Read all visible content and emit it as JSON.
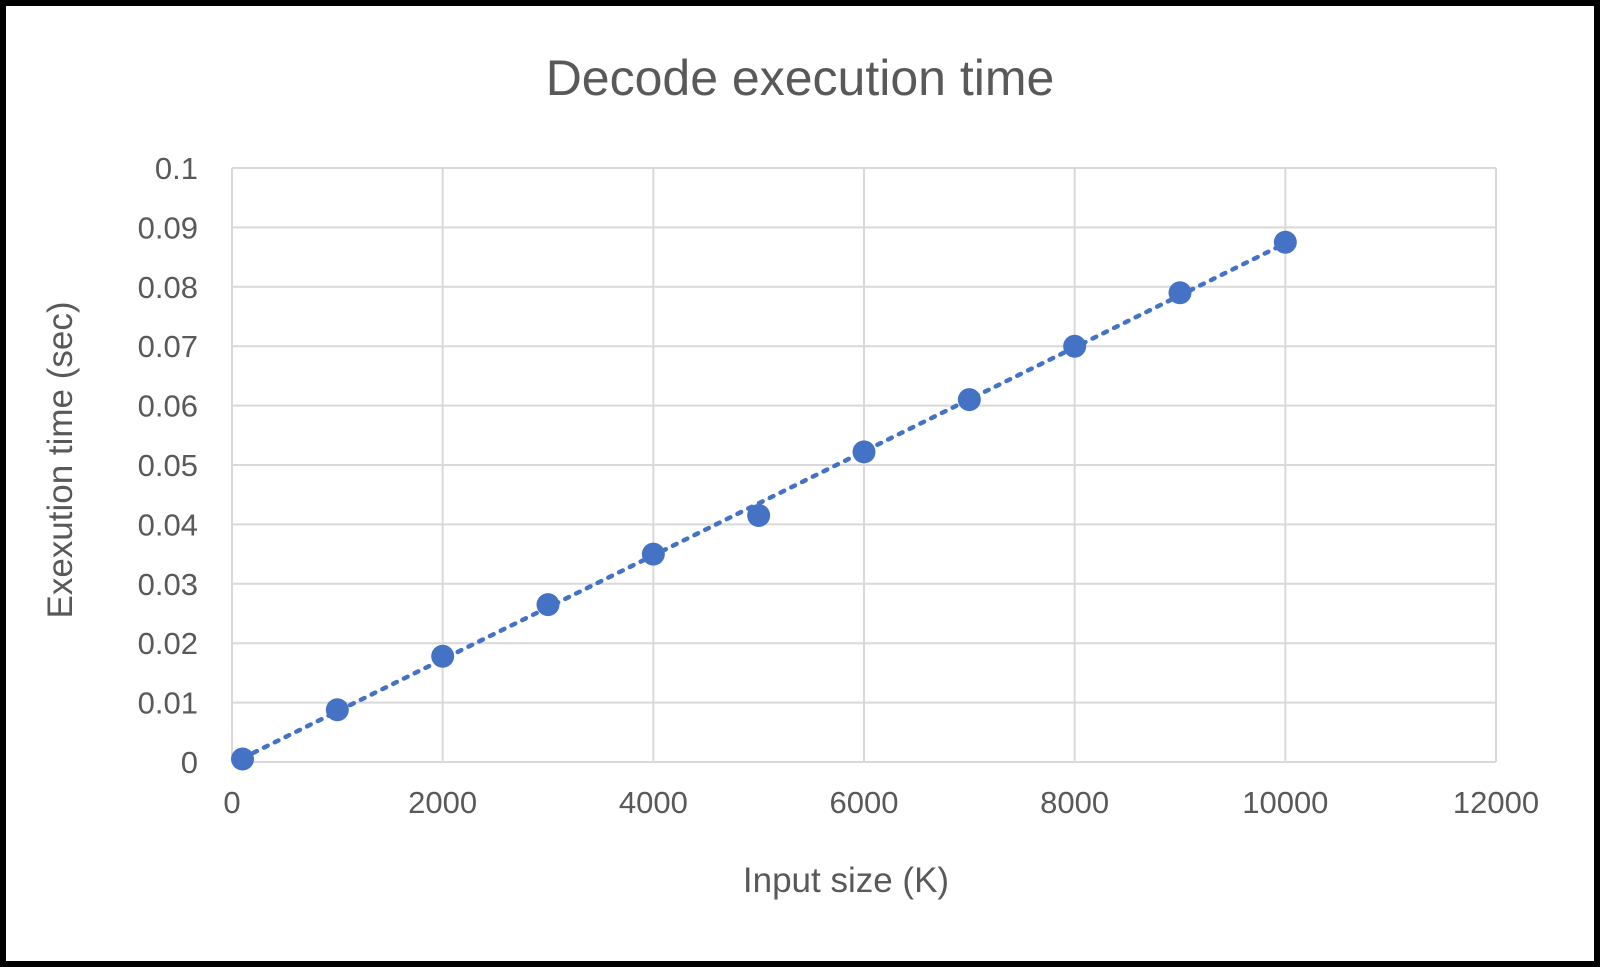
{
  "chart_data": {
    "type": "scatter",
    "title": "Decode execution time",
    "xlabel": "Input size (K)",
    "ylabel": "Exexution time (sec)",
    "xlim": [
      0,
      12000
    ],
    "ylim": [
      0,
      0.1
    ],
    "x_ticks": [
      "0",
      "2000",
      "4000",
      "6000",
      "8000",
      "10000",
      "12000"
    ],
    "y_ticks": [
      "0",
      "0.01",
      "0.02",
      "0.03",
      "0.04",
      "0.05",
      "0.06",
      "0.07",
      "0.08",
      "0.09",
      "0.1"
    ],
    "grid": true,
    "legend": "none",
    "trendline": "linear, dotted",
    "series": [
      {
        "color": "#4472C4",
        "points": [
          {
            "x": 100,
            "y": 0.0005
          },
          {
            "x": 1000,
            "y": 0.0088
          },
          {
            "x": 2000,
            "y": 0.0178
          },
          {
            "x": 3000,
            "y": 0.0265
          },
          {
            "x": 4000,
            "y": 0.035
          },
          {
            "x": 5000,
            "y": 0.0415
          },
          {
            "x": 6000,
            "y": 0.0522
          },
          {
            "x": 7000,
            "y": 0.061
          },
          {
            "x": 8000,
            "y": 0.07
          },
          {
            "x": 9000,
            "y": 0.079
          },
          {
            "x": 10000,
            "y": 0.0875
          }
        ]
      }
    ]
  }
}
